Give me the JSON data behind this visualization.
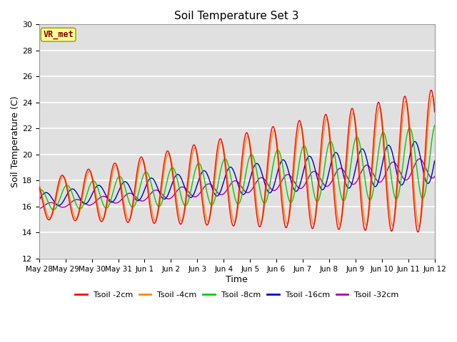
{
  "title": "Soil Temperature Set 3",
  "xlabel": "Time",
  "ylabel": "Soil Temperature (C)",
  "ylim": [
    12,
    30
  ],
  "yticks": [
    12,
    14,
    16,
    18,
    20,
    22,
    24,
    26,
    28,
    30
  ],
  "background_color": "#ffffff",
  "plot_bg_color": "#e0e0e0",
  "grid_color": "#ffffff",
  "series_colors": [
    "#ff0000",
    "#ff8800",
    "#00cc00",
    "#0000cc",
    "#aa00aa"
  ],
  "series_labels": [
    "Tsoil -2cm",
    "Tsoil -4cm",
    "Tsoil -8cm",
    "Tsoil -16cm",
    "Tsoil -32cm"
  ],
  "annotation_text": "VR_met",
  "annotation_color": "#8b0000",
  "annotation_bg": "#ffff99",
  "n_points": 1500,
  "tick_labels": [
    "May 28",
    "May 29",
    "May 30",
    "May 31",
    "Jun 1",
    "Jun 2",
    "Jun 3",
    "Jun 4",
    "Jun 5",
    "Jun 6",
    "Jun 7",
    "Jun 8",
    "Jun 9",
    "Jun 10",
    "Jun 11",
    "Jun 12"
  ],
  "tick_positions": [
    0,
    1,
    2,
    3,
    4,
    5,
    6,
    7,
    8,
    9,
    10,
    11,
    12,
    13,
    14,
    15
  ]
}
